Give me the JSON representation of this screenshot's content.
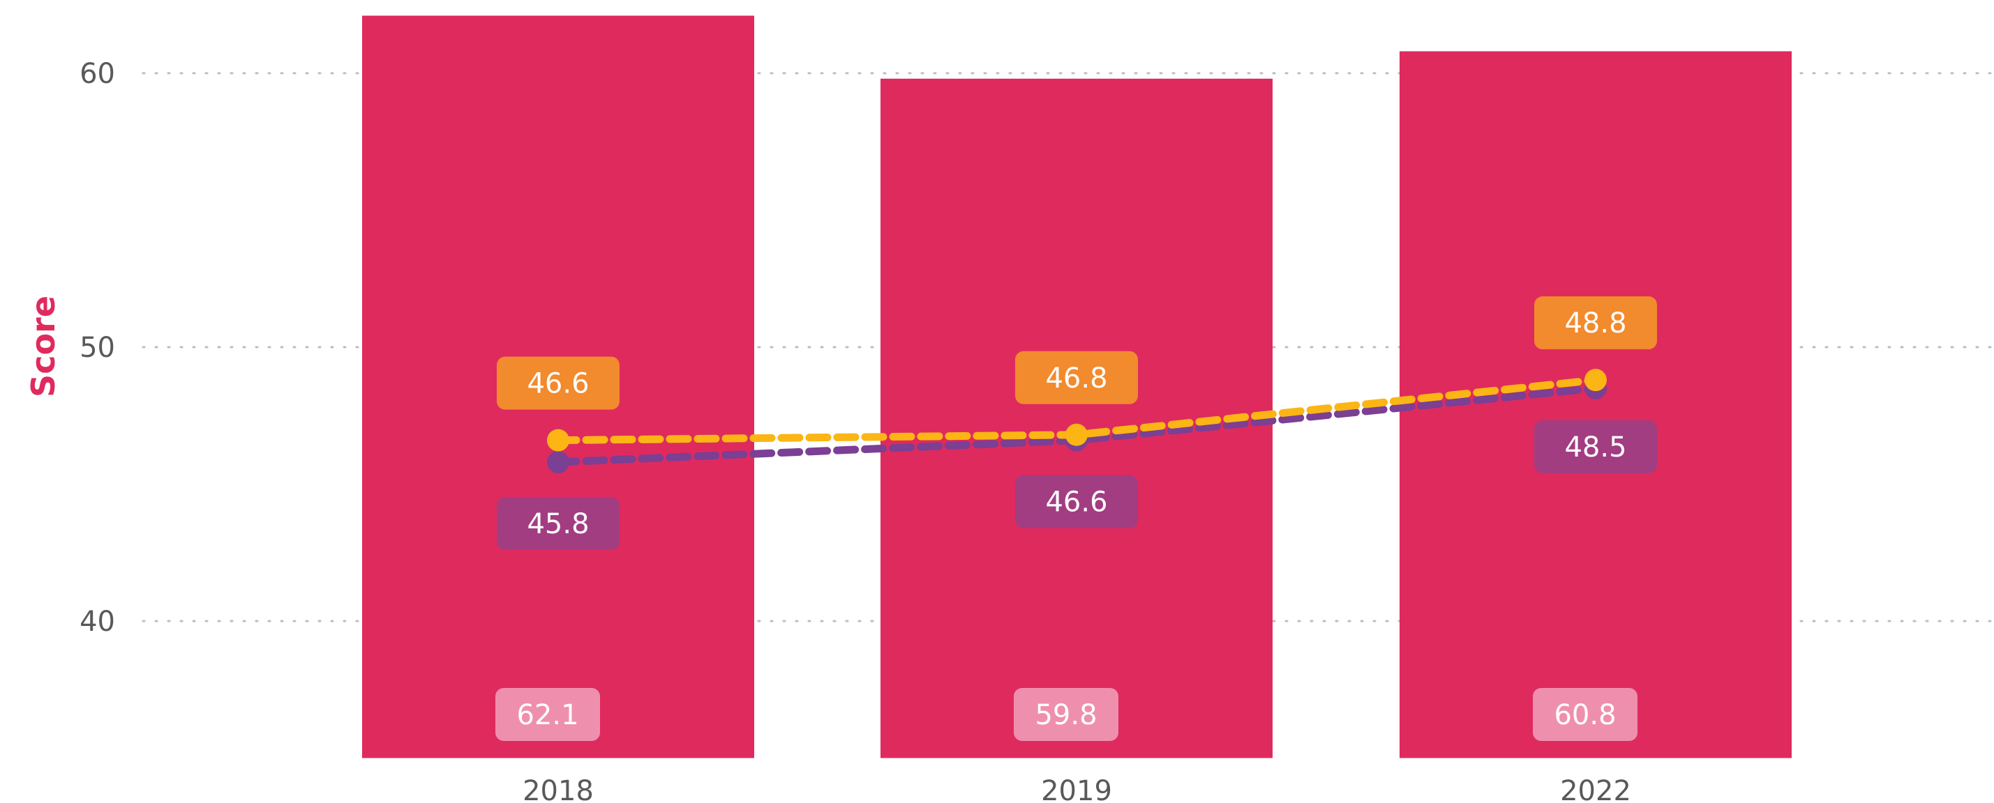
{
  "chart_data": {
    "type": "bar",
    "categories": [
      "2018",
      "2019",
      "2022"
    ],
    "ylabel": "Score",
    "ylim": [
      35,
      62.5
    ],
    "yticks": [
      40,
      50,
      60
    ],
    "grid": true,
    "series": [
      {
        "type": "bar",
        "values": [
          62.1,
          59.8,
          60.8
        ],
        "color": "#df2a5e",
        "label_color": "#ef8fae"
      },
      {
        "type": "line",
        "style": "dashed",
        "values": [
          45.8,
          46.6,
          48.5
        ],
        "color": "#7b3f94",
        "label_color": "#a23d82"
      },
      {
        "type": "line",
        "style": "dashed",
        "values": [
          46.6,
          46.8,
          48.8
        ],
        "color": "#fbb515",
        "label_color": "#f28a2e"
      }
    ]
  }
}
